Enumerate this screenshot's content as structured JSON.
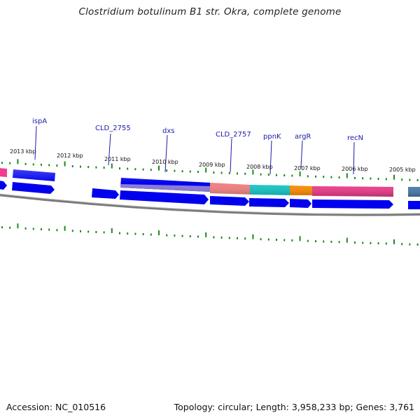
{
  "title": "Clostridium botulinum B1 str. Okra, complete genome",
  "footer": {
    "accession": "Accession: NC_010516",
    "summary": "Topology: circular; Length: 3,958,233 bp; Genes: 3,761"
  },
  "scale_labels": [
    "2013 kbp",
    "2012 kbp",
    "2011 kbp",
    "2010 kbp",
    "2009 kbp",
    "2008 kbp",
    "2007 kbp",
    "2006 kbp",
    "2005 kbp"
  ],
  "gene_labels": [
    "ispA",
    "CLD_2755",
    "dxs",
    "CLD_2757",
    "ppnK",
    "argR",
    "recN"
  ],
  "colors": {
    "blue": "#0000ee",
    "pink": "#f03c8c",
    "salmon": "#f08080",
    "cyan": "#16c6c6",
    "orange": "#ff8c00",
    "purple": "#8878d8",
    "steel": "#4a7fb0",
    "tick": "#1a8a1a",
    "backbone": "#7a7a7a",
    "label": "#1a1aa8"
  }
}
